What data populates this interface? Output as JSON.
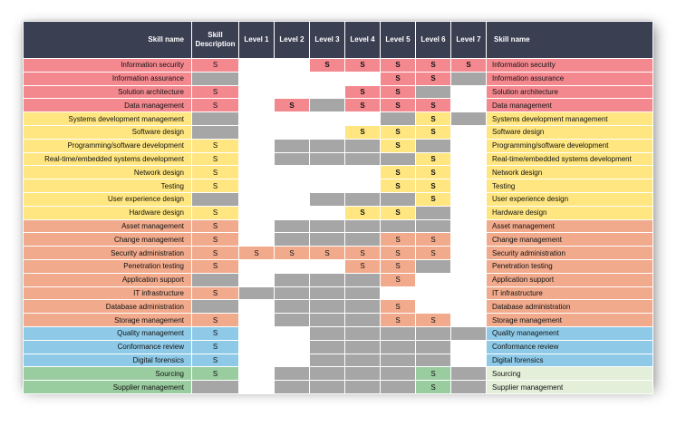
{
  "headers": {
    "skill_name": "Skill name",
    "skill_description": "Skill Description",
    "levels": [
      "Level 1",
      "Level 2",
      "Level 3",
      "Level 4",
      "Level 5",
      "Level 6",
      "Level 7"
    ],
    "skill_name_right": "Skill name"
  },
  "colors": {
    "red": "#f4888f",
    "yellow": "#ffe680",
    "orange": "#f1aa8c",
    "blue": "#8ecae8",
    "green": "#99cc9e",
    "light_green": "#e3efd9",
    "gray": "#a6a6a6",
    "white": "#ffffff",
    "header": "#3b3f52"
  },
  "rows": [
    {
      "name": "Information security",
      "group": "red",
      "desc": "S",
      "levels": [
        "w",
        "w",
        "S",
        "S",
        "S",
        "S",
        "S"
      ]
    },
    {
      "name": "Information assurance",
      "group": "red",
      "desc": "",
      "levels": [
        "w",
        "w",
        "w",
        "w",
        "S",
        "S",
        "g"
      ]
    },
    {
      "name": "Solution architecture",
      "group": "red",
      "desc": "S",
      "levels": [
        "w",
        "w",
        "w",
        "S",
        "S",
        "g",
        "w"
      ]
    },
    {
      "name": "Data management",
      "group": "red",
      "desc": "S",
      "levels": [
        "w",
        "S",
        "g",
        "S",
        "S",
        "S",
        "w"
      ]
    },
    {
      "name": "Systems development management",
      "group": "yellow",
      "desc": "",
      "levels": [
        "w",
        "w",
        "w",
        "w",
        "g",
        "S",
        "g"
      ]
    },
    {
      "name": "Software design",
      "group": "yellow",
      "desc": "",
      "levels": [
        "w",
        "w",
        "w",
        "S",
        "S",
        "S",
        "w"
      ]
    },
    {
      "name": "Programming/software development",
      "group": "yellow",
      "desc": "S",
      "levels": [
        "w",
        "g",
        "g",
        "g",
        "S",
        "g",
        "w"
      ]
    },
    {
      "name": "Real-time/embedded systems development",
      "group": "yellow",
      "desc": "S",
      "levels": [
        "w",
        "g",
        "g",
        "g",
        "g",
        "S",
        "w"
      ]
    },
    {
      "name": "Network design",
      "group": "yellow",
      "desc": "S",
      "levels": [
        "w",
        "w",
        "w",
        "w",
        "S",
        "S",
        "w"
      ]
    },
    {
      "name": "Testing",
      "group": "yellow",
      "desc": "S",
      "levels": [
        "w",
        "w",
        "w",
        "w",
        "S",
        "S",
        "w"
      ]
    },
    {
      "name": "User experience design",
      "group": "yellow",
      "desc": "",
      "levels": [
        "w",
        "w",
        "g",
        "g",
        "g",
        "S",
        "w"
      ]
    },
    {
      "name": "Hardware design",
      "group": "yellow",
      "desc": "S",
      "levels": [
        "w",
        "w",
        "w",
        "S",
        "S",
        "g",
        "w"
      ]
    },
    {
      "name": "Asset management",
      "group": "orange",
      "desc": "S",
      "levels": [
        "w",
        "g",
        "g",
        "g",
        "g",
        "g",
        "w"
      ]
    },
    {
      "name": "Change management",
      "group": "orange",
      "desc": "S",
      "levels": [
        "w",
        "g",
        "g",
        "g",
        "S",
        "S",
        "w"
      ]
    },
    {
      "name": "Security administration",
      "group": "orange",
      "desc": "S",
      "levels": [
        "S",
        "S",
        "S",
        "S",
        "S",
        "S",
        "w"
      ]
    },
    {
      "name": "Penetration testing",
      "group": "orange",
      "desc": "S",
      "levels": [
        "w",
        "w",
        "w",
        "S",
        "S",
        "g",
        "w"
      ]
    },
    {
      "name": "Application support",
      "group": "orange",
      "desc": "",
      "levels": [
        "w",
        "g",
        "g",
        "g",
        "S",
        "w",
        "w"
      ]
    },
    {
      "name": "IT infrastructure",
      "group": "orange",
      "desc": "S",
      "levels": [
        "g",
        "g",
        "g",
        "g",
        "w",
        "w",
        "w"
      ]
    },
    {
      "name": "Database administration",
      "group": "orange",
      "desc": "",
      "levels": [
        "w",
        "g",
        "g",
        "g",
        "S",
        "w",
        "w"
      ]
    },
    {
      "name": "Storage management",
      "group": "orange",
      "desc": "S",
      "levels": [
        "w",
        "g",
        "g",
        "g",
        "S",
        "S",
        "w"
      ]
    },
    {
      "name": "Quality management",
      "group": "blue",
      "desc": "S",
      "levels": [
        "w",
        "w",
        "g",
        "g",
        "g",
        "g",
        "g"
      ]
    },
    {
      "name": "Conformance review",
      "group": "blue",
      "desc": "S",
      "levels": [
        "w",
        "w",
        "g",
        "g",
        "g",
        "g",
        "w"
      ]
    },
    {
      "name": "Digital forensics",
      "group": "blue",
      "desc": "S",
      "levels": [
        "w",
        "w",
        "g",
        "g",
        "g",
        "g",
        "w"
      ]
    },
    {
      "name": "Sourcing",
      "group": "green",
      "desc": "S",
      "levels": [
        "w",
        "g",
        "g",
        "g",
        "g",
        "S",
        "g"
      ]
    },
    {
      "name": "Supplier management",
      "group": "green",
      "desc": "",
      "levels": [
        "w",
        "g",
        "g",
        "g",
        "g",
        "S",
        "g"
      ]
    }
  ]
}
